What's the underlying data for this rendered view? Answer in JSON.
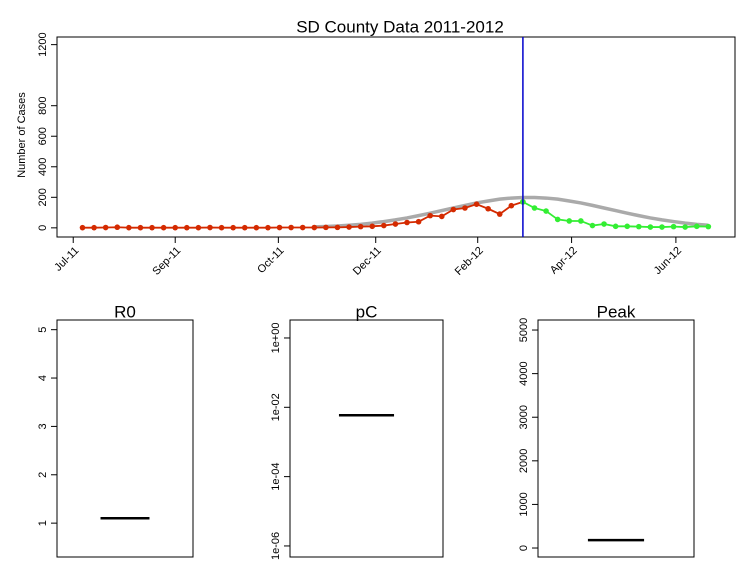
{
  "chart_data": [
    {
      "type": "line",
      "title": "SD County Data 2011-2012",
      "y_label": "Number of Cases",
      "xlim": [
        -2.2,
        56.3
      ],
      "ylim": [
        -60,
        1250
      ],
      "yticks": [
        0,
        200,
        400,
        600,
        800,
        1200
      ],
      "xticks": [
        {
          "value": -0.8,
          "label": "Jul-11"
        },
        {
          "value": 8.0,
          "label": "Sep-11"
        },
        {
          "value": 16.9,
          "label": "Oct-11"
        },
        {
          "value": 25.3,
          "label": "Dec-11"
        },
        {
          "value": 34.1,
          "label": "Feb-12"
        },
        {
          "value": 42.2,
          "label": "Apr-12"
        },
        {
          "value": 51.2,
          "label": "Jun-12"
        }
      ],
      "vline": 38,
      "vline_color": "#0000cc",
      "series": [
        {
          "color": "#aaaaaa",
          "markers": false,
          "values": [
            null,
            null,
            null,
            null,
            null,
            null,
            null,
            null,
            null,
            null,
            null,
            null,
            null,
            null,
            null,
            null,
            null,
            null,
            null,
            null,
            6,
            9,
            12,
            17,
            23,
            31,
            41,
            52,
            65,
            80,
            96,
            113,
            130,
            147,
            163,
            176,
            188,
            195,
            199,
            199,
            195,
            188,
            176,
            163,
            147,
            130,
            113,
            96,
            80,
            65,
            52,
            41,
            31,
            23,
            17
          ]
        },
        {
          "color": "#d42a00",
          "markers": true,
          "values": [
            1,
            1,
            2,
            4,
            1,
            1,
            1,
            1,
            1,
            1,
            1,
            2,
            1,
            1,
            1,
            1,
            1,
            2,
            2,
            2,
            2,
            3,
            3,
            5,
            8,
            10,
            15,
            25,
            35,
            40,
            80,
            75,
            120,
            130,
            155,
            125,
            90,
            145,
            170,
            null,
            null,
            null,
            null,
            null,
            null,
            null,
            null,
            null,
            null,
            null,
            null,
            null,
            null,
            null,
            null
          ]
        },
        {
          "color": "#33ee33",
          "markers": true,
          "values": [
            null,
            null,
            null,
            null,
            null,
            null,
            null,
            null,
            null,
            null,
            null,
            null,
            null,
            null,
            null,
            null,
            null,
            null,
            null,
            null,
            null,
            null,
            null,
            null,
            null,
            null,
            null,
            null,
            null,
            null,
            null,
            null,
            null,
            null,
            null,
            null,
            null,
            null,
            170,
            130,
            110,
            55,
            45,
            45,
            15,
            25,
            10,
            10,
            8,
            5,
            5,
            8,
            5,
            10,
            8
          ]
        }
      ]
    },
    {
      "type": "median",
      "title": "R0",
      "ylim": [
        0.3,
        5.2
      ],
      "yticks": [
        1,
        2,
        3,
        4,
        5
      ],
      "values": [
        1.1
      ]
    },
    {
      "type": "median",
      "title": "pC",
      "log_scale": true,
      "ylim": [
        4.8e-07,
        3.3
      ],
      "yticks": [
        {
          "value": 1e-06,
          "label": "1e-06"
        },
        {
          "value": 0.0001,
          "label": "1e-04"
        },
        {
          "value": 0.01,
          "label": "1e-02"
        },
        {
          "value": 1,
          "label": "1e+00"
        }
      ],
      "values": [
        0.0059
      ]
    },
    {
      "type": "median",
      "title": "Peak",
      "ylim": [
        -206,
        5230
      ],
      "yticks": [
        0,
        1000,
        2000,
        3000,
        4000,
        5000
      ],
      "values": [
        180
      ]
    }
  ]
}
